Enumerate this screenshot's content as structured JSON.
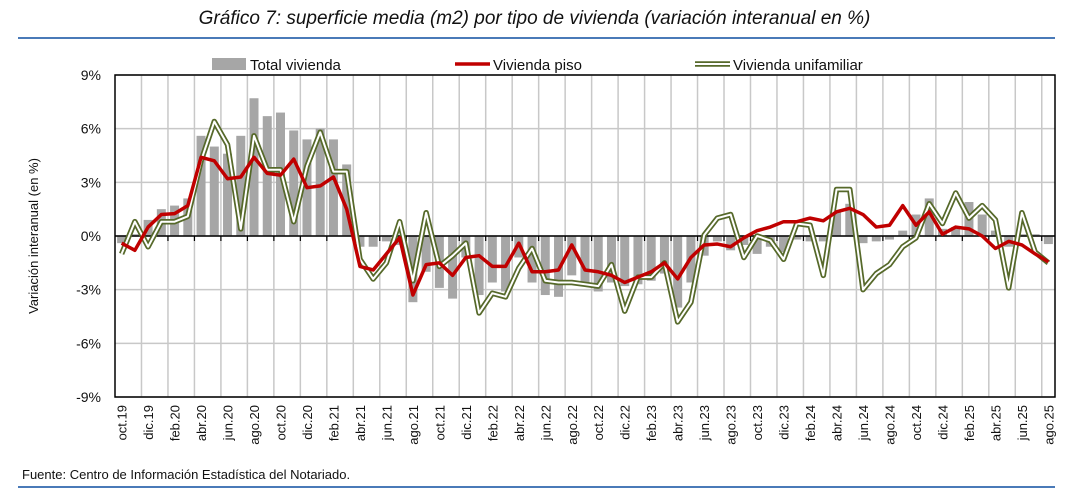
{
  "title": "Gráfico 7: superficie media (m2) por tipo de vivienda (variación interanual en %)",
  "source": "Fuente: Centro de Información Estadística del Notariado.",
  "colors": {
    "bars": "#a6a6a6",
    "piso": "#c00000",
    "unifamiliar": "#56692a"
  },
  "chart_data": {
    "type": "bar+line",
    "title": "Gráfico 7: superficie media (m2) por tipo de vivienda (variación interanual en %)",
    "ylabel": "Variación interanual (en %)",
    "xlabel": "",
    "ylim": [
      -9,
      9
    ],
    "yticks": [
      9,
      6,
      3,
      0,
      -3,
      -6,
      -9
    ],
    "ytick_labels": [
      "9%",
      "6%",
      "3%",
      "0%",
      "-3%",
      "-6%",
      "-9%"
    ],
    "grid": true,
    "legend_position": "top",
    "x_start": "oct.19",
    "x_end": "ago.25",
    "xtick_labels": [
      "oct.19",
      "dic.19",
      "feb.20",
      "abr.20",
      "jun.20",
      "ago.20",
      "oct.20",
      "dic.20",
      "feb.21",
      "abr.21",
      "jun.21",
      "ago.21",
      "oct.21",
      "dic.21",
      "feb.22",
      "abr.22",
      "jun.22",
      "ago.22",
      "oct.22",
      "dic.22",
      "feb.23",
      "abr.23",
      "jun.23",
      "ago.23",
      "oct.23",
      "dic.23",
      "feb.24",
      "abr.24",
      "jun.24",
      "ago.24",
      "oct.24",
      "dic.24",
      "feb.25",
      "abr.25",
      "jun.25",
      "ago.25"
    ],
    "series": [
      {
        "name": "Total vivienda",
        "kind": "bar",
        "values": [
          -0.4,
          0.1,
          0.9,
          1.5,
          1.7,
          2.1,
          5.6,
          5.0,
          4.6,
          5.6,
          7.7,
          6.7,
          6.9,
          5.9,
          5.4,
          6.0,
          5.4,
          4.0,
          -0.6,
          -0.6,
          -0.3,
          -0.5,
          -3.7,
          -2.0,
          -2.9,
          -3.5,
          -1.2,
          -3.3,
          -2.6,
          -3.1,
          -1.2,
          -2.6,
          -3.3,
          -3.4,
          -2.2,
          -2.8,
          -3.1,
          -2.6,
          -2.8,
          -2.7,
          -2.5,
          -2.1,
          -4.0,
          -2.6,
          -1.1,
          -0.3,
          -0.8,
          -0.5,
          -1.0,
          -0.6,
          -0.9,
          -0.2,
          -0.3,
          -0.3,
          1.4,
          1.8,
          -0.4,
          -0.3,
          -0.2,
          0.3,
          1.2,
          2.1,
          0.4,
          0.5,
          1.9,
          1.2,
          0.3,
          -0.6,
          0.1,
          0.1,
          -0.45
        ]
      },
      {
        "name": "Vivienda piso",
        "kind": "line",
        "values": [
          -0.4,
          -0.8,
          0.5,
          1.2,
          1.25,
          1.7,
          4.4,
          4.2,
          3.2,
          3.3,
          4.4,
          3.5,
          3.4,
          4.3,
          2.7,
          2.8,
          3.3,
          1.5,
          -1.7,
          -1.9,
          -1.0,
          -0.1,
          -3.3,
          -1.6,
          -1.5,
          -2.2,
          -1.2,
          -1.1,
          -1.7,
          -1.7,
          -0.4,
          -2.0,
          -2.0,
          -1.9,
          -0.5,
          -1.9,
          -2.0,
          -2.2,
          -2.6,
          -2.3,
          -2.0,
          -1.5,
          -2.4,
          -1.2,
          -0.5,
          -0.45,
          -0.6,
          -0.1,
          0.3,
          0.5,
          0.8,
          0.8,
          1.0,
          0.85,
          1.35,
          1.55,
          1.2,
          0.5,
          0.6,
          1.7,
          0.6,
          1.35,
          0.1,
          0.5,
          0.4,
          0.0,
          -0.7,
          -0.3,
          -0.5,
          -1.0,
          -1.45
        ]
      },
      {
        "name": "Vivienda unifamiliar",
        "kind": "line",
        "values": [
          -1.0,
          0.8,
          -0.6,
          0.8,
          0.8,
          1.1,
          4.2,
          6.4,
          5.1,
          0.4,
          5.6,
          3.7,
          3.7,
          0.8,
          3.9,
          5.8,
          3.6,
          3.6,
          -1.3,
          -2.4,
          -1.5,
          0.8,
          -2.5,
          1.3,
          -1.7,
          -1.1,
          -0.4,
          -4.3,
          -3.2,
          -3.4,
          -1.8,
          -0.7,
          -2.5,
          -2.6,
          -2.6,
          -2.7,
          -2.8,
          -1.6,
          -4.2,
          -2.3,
          -2.3,
          -1.5,
          -4.8,
          -3.7,
          0.05,
          1.0,
          1.2,
          -1.2,
          0.0,
          -0.25,
          -1.3,
          0.7,
          0.6,
          -2.2,
          2.6,
          2.6,
          -3.0,
          -2.1,
          -1.6,
          -0.6,
          -0.1,
          1.8,
          0.7,
          2.4,
          1.0,
          1.7,
          0.9,
          -2.9,
          1.3,
          -0.9,
          -1.5
        ]
      }
    ]
  }
}
